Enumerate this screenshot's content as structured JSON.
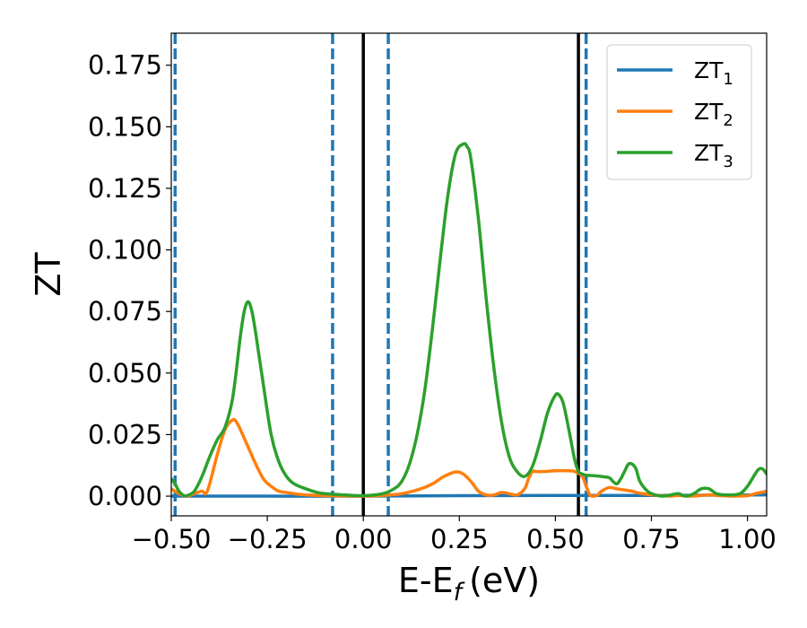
{
  "chart_data": {
    "type": "line",
    "title": "",
    "xlabel": "E-E",
    "xlabel_sub": "f",
    "xlabel_unit": "(eV)",
    "ylabel": "ZT",
    "xlim": [
      -0.5,
      1.05
    ],
    "ylim": [
      -0.008,
      0.188
    ],
    "xticks": [
      -0.5,
      -0.25,
      0.0,
      0.25,
      0.5,
      0.75,
      1.0
    ],
    "xtick_labels": [
      "−0.50",
      "−0.25",
      "0.00",
      "0.25",
      "0.50",
      "0.75",
      "1.00"
    ],
    "yticks": [
      0.0,
      0.025,
      0.05,
      0.075,
      0.1,
      0.125,
      0.15,
      0.175
    ],
    "ytick_labels": [
      "0.000",
      "0.025",
      "0.050",
      "0.075",
      "0.100",
      "0.125",
      "0.150",
      "0.175"
    ],
    "grid": false,
    "legend_position": "top-right",
    "vertical_lines": [
      {
        "x": 0.0,
        "style": "solid",
        "color": "#000000"
      },
      {
        "x": 0.56,
        "style": "solid",
        "color": "#000000"
      },
      {
        "x": -0.49,
        "style": "dashed",
        "color": "#1f77b4"
      },
      {
        "x": -0.08,
        "style": "dashed",
        "color": "#1f77b4"
      },
      {
        "x": 0.065,
        "style": "dashed",
        "color": "#1f77b4"
      },
      {
        "x": 0.58,
        "style": "dashed",
        "color": "#1f77b4"
      }
    ],
    "series": [
      {
        "name": "ZT",
        "sub": "1",
        "color": "#1f77b4",
        "x": [
          -0.5,
          -0.25,
          0.0,
          0.25,
          0.5,
          0.75,
          1.05
        ],
        "y": [
          0.0,
          0.0,
          0.0,
          0.0002,
          0.0003,
          0.0003,
          0.0005
        ]
      },
      {
        "name": "ZT",
        "sub": "2",
        "color": "#ff7f0e",
        "x": [
          -0.5,
          -0.48,
          -0.46,
          -0.44,
          -0.42,
          -0.41,
          -0.4,
          -0.38,
          -0.36,
          -0.34,
          -0.33,
          -0.32,
          -0.3,
          -0.28,
          -0.26,
          -0.24,
          -0.22,
          -0.2,
          -0.18,
          -0.15,
          -0.1,
          -0.05,
          0.0,
          0.05,
          0.1,
          0.15,
          0.18,
          0.21,
          0.24,
          0.26,
          0.28,
          0.3,
          0.32,
          0.34,
          0.36,
          0.38,
          0.4,
          0.42,
          0.43,
          0.44,
          0.45,
          0.47,
          0.5,
          0.53,
          0.55,
          0.57,
          0.58,
          0.59,
          0.6,
          0.61,
          0.62,
          0.64,
          0.66,
          0.68,
          0.7,
          0.72,
          0.75,
          0.78,
          0.8,
          0.82,
          0.85,
          0.88,
          0.9,
          0.93,
          0.96,
          1.0,
          1.02,
          1.05
        ],
        "y": [
          0.003,
          0.001,
          0.0,
          0.001,
          0.002,
          0.001,
          0.005,
          0.017,
          0.027,
          0.031,
          0.03,
          0.027,
          0.02,
          0.013,
          0.007,
          0.004,
          0.002,
          0.0015,
          0.001,
          0.0005,
          0.0002,
          0.0001,
          0.0,
          0.0003,
          0.001,
          0.003,
          0.005,
          0.008,
          0.0098,
          0.009,
          0.006,
          0.002,
          0.0005,
          0.0005,
          0.0015,
          0.001,
          0.0005,
          0.003,
          0.007,
          0.01,
          0.01,
          0.01,
          0.0103,
          0.0103,
          0.01,
          0.008,
          0.004,
          0.0005,
          0.0,
          0.0005,
          0.002,
          0.0035,
          0.003,
          0.0025,
          0.002,
          0.0012,
          0.0005,
          0.0002,
          0.0,
          0.0003,
          0.0,
          0.0003,
          0.0005,
          0.0002,
          0.0,
          0.0002,
          0.001,
          0.002
        ]
      },
      {
        "name": "ZT",
        "sub": "3",
        "color": "#2ca02c",
        "x": [
          -0.5,
          -0.49,
          -0.48,
          -0.47,
          -0.46,
          -0.44,
          -0.42,
          -0.4,
          -0.38,
          -0.36,
          -0.34,
          -0.32,
          -0.31,
          -0.3,
          -0.29,
          -0.28,
          -0.26,
          -0.24,
          -0.22,
          -0.2,
          -0.18,
          -0.15,
          -0.12,
          -0.1,
          -0.05,
          0.0,
          0.05,
          0.08,
          0.1,
          0.12,
          0.14,
          0.16,
          0.18,
          0.2,
          0.22,
          0.24,
          0.26,
          0.27,
          0.28,
          0.3,
          0.32,
          0.34,
          0.36,
          0.38,
          0.4,
          0.42,
          0.44,
          0.46,
          0.48,
          0.5,
          0.51,
          0.52,
          0.53,
          0.54,
          0.55,
          0.56,
          0.57,
          0.58,
          0.6,
          0.62,
          0.64,
          0.65,
          0.66,
          0.67,
          0.68,
          0.69,
          0.7,
          0.71,
          0.72,
          0.74,
          0.76,
          0.78,
          0.8,
          0.82,
          0.84,
          0.86,
          0.88,
          0.9,
          0.92,
          0.95,
          0.98,
          1.0,
          1.02,
          1.03,
          1.04,
          1.05
        ],
        "y": [
          0.007,
          0.005,
          0.002,
          0.0005,
          0.0002,
          0.002,
          0.008,
          0.016,
          0.023,
          0.028,
          0.04,
          0.065,
          0.075,
          0.079,
          0.075,
          0.066,
          0.045,
          0.025,
          0.014,
          0.008,
          0.005,
          0.003,
          0.0015,
          0.001,
          0.0005,
          0.0002,
          0.001,
          0.003,
          0.006,
          0.013,
          0.025,
          0.043,
          0.068,
          0.096,
          0.122,
          0.139,
          0.143,
          0.142,
          0.137,
          0.112,
          0.08,
          0.052,
          0.03,
          0.016,
          0.01,
          0.008,
          0.012,
          0.022,
          0.034,
          0.041,
          0.041,
          0.038,
          0.031,
          0.023,
          0.015,
          0.01,
          0.009,
          0.0085,
          0.0083,
          0.008,
          0.0075,
          0.006,
          0.005,
          0.007,
          0.01,
          0.013,
          0.013,
          0.011,
          0.006,
          0.002,
          0.0005,
          0.0,
          0.0005,
          0.001,
          0.0,
          0.001,
          0.003,
          0.003,
          0.001,
          0.0005,
          0.001,
          0.004,
          0.009,
          0.011,
          0.011,
          0.009
        ]
      }
    ]
  }
}
